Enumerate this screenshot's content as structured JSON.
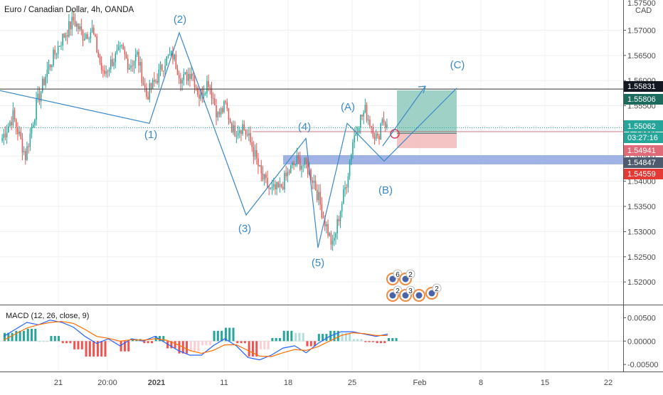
{
  "chart_data": {
    "type": "candlestick",
    "title": "Euro / Canadian Dollar, 4h, OANDA",
    "currency_label": "CAD",
    "price_axis": {
      "range": [
        1.5155,
        1.576
      ],
      "ticks": [
        "1.57000",
        "1.56500",
        "1.56000",
        "1.55500",
        "1.55000",
        "1.54500",
        "1.54000",
        "1.53500",
        "1.53000",
        "1.52500",
        "1.52000"
      ],
      "partial_top_tick": "1.57500"
    },
    "x_axis": {
      "ticks": [
        "21",
        "20:00",
        "2021",
        "11",
        "18",
        "25",
        "Feb",
        "8",
        "15",
        "22"
      ]
    },
    "price_tags": {
      "horizontal_line": "1.55831",
      "take_profit": "1.55806",
      "current_price": "1.55062",
      "countdown": "03:27:16",
      "stop_loss": "1.54941",
      "support_zone": "1.54847",
      "low_tag": "1.54559"
    },
    "wave_labels": {
      "w1": "(1)",
      "w2": "(2)",
      "w3": "(3)",
      "w4": "(4)",
      "w5": "(5)",
      "wA": "(A)",
      "wB": "(B)",
      "wC": "(C)"
    },
    "candles": {
      "start_price": 1.548,
      "path": [
        1.548,
        1.553,
        1.545,
        1.555,
        1.562,
        1.568,
        1.572,
        1.569,
        1.57,
        1.561,
        1.564,
        1.566,
        1.563,
        1.565,
        1.557,
        1.56,
        1.564,
        1.565,
        1.56,
        1.562,
        1.557,
        1.56,
        1.553,
        1.555,
        1.55,
        1.551,
        1.547,
        1.541,
        1.538,
        1.5385,
        1.542,
        1.544,
        1.543,
        1.54,
        1.533,
        1.527,
        1.533,
        1.54,
        1.548,
        1.552,
        1.554,
        1.551,
        1.548,
        1.553,
        1.5506
      ],
      "counts": [
        8,
        8,
        7,
        7,
        9,
        8,
        6,
        6,
        7,
        6,
        6,
        5,
        5,
        6,
        6,
        6,
        5,
        6,
        6,
        5,
        6,
        6,
        5,
        5,
        6,
        6,
        6,
        6,
        6,
        6,
        5,
        6,
        5,
        6,
        6,
        4,
        5,
        4,
        4,
        4,
        4,
        4,
        3,
        3
      ],
      "up_color": "#26a69a",
      "down_color": "#ef5350"
    },
    "elliott_wave": {
      "line_color": "#3a88c8",
      "points": [
        {
          "label": "start",
          "price": 1.558
        },
        {
          "label": "(1)",
          "price": 1.5515
        },
        {
          "label": "(2)",
          "price": 1.5695
        },
        {
          "label": "(3)",
          "price": 1.5333
        },
        {
          "label": "(4)",
          "price": 1.5485
        },
        {
          "label": "(5)",
          "price": 1.5268
        },
        {
          "label": "(A)",
          "price": 1.5515
        },
        {
          "label": "(B)",
          "price": 1.544
        },
        {
          "label": "(C)",
          "price": 1.5585
        }
      ]
    },
    "position": {
      "entry": 1.5495,
      "take_profit": 1.55806,
      "stop_loss": 1.54941,
      "profit_color": "#8fc9bd",
      "loss_color": "#f2b9b9"
    },
    "macd": {
      "title": "MACD (12, 26, close, 9)",
      "ticks": [
        "0.00500",
        "0.00000",
        "-0.00500"
      ],
      "range": [
        -0.0065,
        0.0075
      ],
      "macd_color": "#2962ff",
      "signal_color": "#ff6d00",
      "macd_path": [
        0.001,
        0.0025,
        0.004,
        0.0035,
        0.0045,
        0.004,
        0.003,
        0.001,
        -0.0005,
        0.0005,
        -0.001,
        0.0005,
        0.0,
        0.001,
        -0.0005,
        -0.002,
        -0.003,
        -0.003,
        -0.001,
        0.0005,
        -0.001,
        -0.0035,
        -0.004,
        -0.003,
        -0.0015,
        -0.001,
        -0.0025,
        -0.0005,
        0.001,
        0.002,
        0.002,
        0.0015,
        0.001,
        0.0015
      ],
      "signal_path": [
        0.0002,
        0.0015,
        0.0028,
        0.0035,
        0.004,
        0.0042,
        0.0038,
        0.0025,
        0.001,
        0.0006,
        0.0,
        0.0003,
        0.0002,
        0.0005,
        0.0002,
        -0.0008,
        -0.002,
        -0.0026,
        -0.002,
        -0.0008,
        -0.0008,
        -0.002,
        -0.0032,
        -0.0033,
        -0.0025,
        -0.0018,
        -0.002,
        -0.0012,
        0.0,
        0.0012,
        0.0018,
        0.0016,
        0.0012,
        0.0012
      ]
    },
    "flags": {
      "row1": [
        "6",
        "2"
      ],
      "row2": [
        "2",
        "3",
        "2"
      ]
    }
  }
}
